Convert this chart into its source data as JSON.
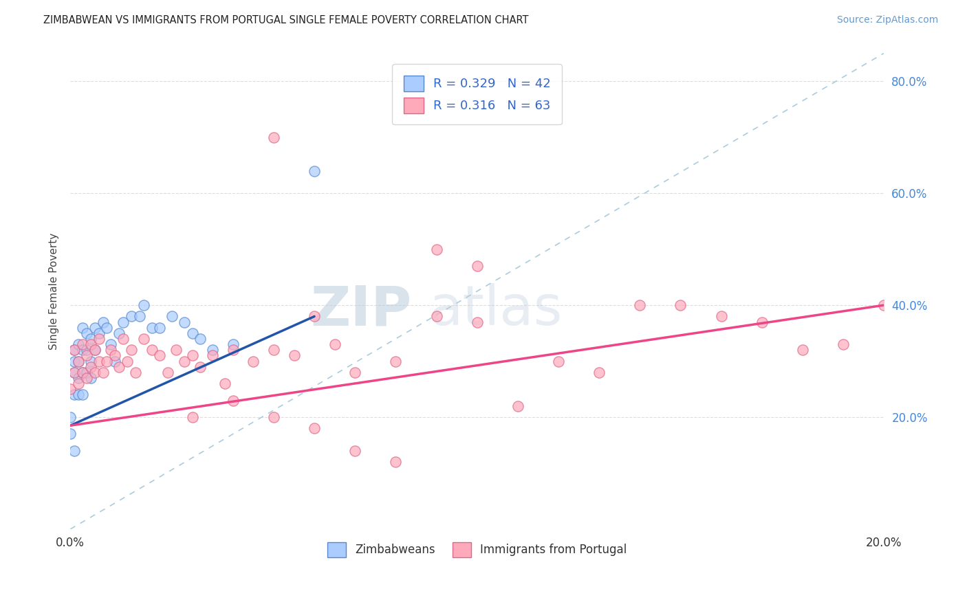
{
  "title": "ZIMBABWEAN VS IMMIGRANTS FROM PORTUGAL SINGLE FEMALE POVERTY CORRELATION CHART",
  "source": "Source: ZipAtlas.com",
  "ylabel": "Single Female Poverty",
  "legend_bottom": [
    "Zimbabweans",
    "Immigrants from Portugal"
  ],
  "R1": 0.329,
  "N1": 42,
  "R2": 0.316,
  "N2": 63,
  "color1_fill": "#aaccff",
  "color1_edge": "#5588cc",
  "color2_fill": "#ffaabb",
  "color2_edge": "#dd6688",
  "trendline1_color": "#2255aa",
  "trendline2_color": "#ee4488",
  "diagonal_color": "#aaccdd",
  "xlim": [
    0.0,
    0.2
  ],
  "ylim": [
    0.0,
    0.85
  ],
  "watermark_zip": "ZIP",
  "watermark_atlas": "atlas",
  "series1_x": [
    0.0,
    0.0,
    0.001,
    0.001,
    0.001,
    0.001,
    0.002,
    0.002,
    0.002,
    0.002,
    0.003,
    0.003,
    0.003,
    0.003,
    0.004,
    0.004,
    0.004,
    0.005,
    0.005,
    0.005,
    0.006,
    0.006,
    0.007,
    0.008,
    0.009,
    0.01,
    0.011,
    0.012,
    0.013,
    0.015,
    0.017,
    0.018,
    0.02,
    0.022,
    0.025,
    0.028,
    0.03,
    0.032,
    0.035,
    0.04,
    0.06,
    0.001
  ],
  "series1_y": [
    0.17,
    0.2,
    0.24,
    0.28,
    0.3,
    0.32,
    0.24,
    0.27,
    0.3,
    0.33,
    0.24,
    0.28,
    0.32,
    0.36,
    0.28,
    0.32,
    0.35,
    0.27,
    0.3,
    0.34,
    0.32,
    0.36,
    0.35,
    0.37,
    0.36,
    0.33,
    0.3,
    0.35,
    0.37,
    0.38,
    0.38,
    0.4,
    0.36,
    0.36,
    0.38,
    0.37,
    0.35,
    0.34,
    0.32,
    0.33,
    0.64,
    0.14
  ],
  "series2_x": [
    0.0,
    0.001,
    0.001,
    0.002,
    0.002,
    0.003,
    0.003,
    0.004,
    0.004,
    0.005,
    0.005,
    0.006,
    0.006,
    0.007,
    0.007,
    0.008,
    0.009,
    0.01,
    0.011,
    0.012,
    0.013,
    0.014,
    0.015,
    0.016,
    0.018,
    0.02,
    0.022,
    0.024,
    0.026,
    0.028,
    0.03,
    0.032,
    0.035,
    0.038,
    0.04,
    0.045,
    0.05,
    0.055,
    0.06,
    0.065,
    0.07,
    0.08,
    0.09,
    0.1,
    0.11,
    0.12,
    0.13,
    0.14,
    0.15,
    0.16,
    0.17,
    0.18,
    0.19,
    0.2,
    0.03,
    0.04,
    0.05,
    0.06,
    0.07,
    0.08,
    0.09,
    0.1,
    0.05
  ],
  "series2_y": [
    0.25,
    0.28,
    0.32,
    0.26,
    0.3,
    0.28,
    0.33,
    0.27,
    0.31,
    0.29,
    0.33,
    0.28,
    0.32,
    0.3,
    0.34,
    0.28,
    0.3,
    0.32,
    0.31,
    0.29,
    0.34,
    0.3,
    0.32,
    0.28,
    0.34,
    0.32,
    0.31,
    0.28,
    0.32,
    0.3,
    0.31,
    0.29,
    0.31,
    0.26,
    0.32,
    0.3,
    0.32,
    0.31,
    0.38,
    0.33,
    0.28,
    0.3,
    0.38,
    0.37,
    0.22,
    0.3,
    0.28,
    0.4,
    0.4,
    0.38,
    0.37,
    0.32,
    0.33,
    0.4,
    0.2,
    0.23,
    0.2,
    0.18,
    0.14,
    0.12,
    0.5,
    0.47,
    0.7
  ],
  "trendline1_x0": 0.0,
  "trendline1_x1": 0.06,
  "trendline1_y0": 0.185,
  "trendline1_y1": 0.38,
  "trendline2_x0": 0.0,
  "trendline2_x1": 0.2,
  "trendline2_y0": 0.185,
  "trendline2_y1": 0.4
}
